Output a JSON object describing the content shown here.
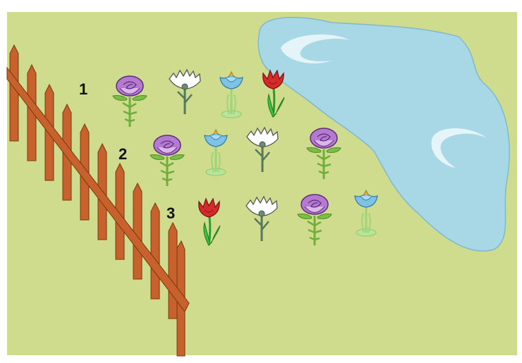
{
  "scene": {
    "ground_color": "#cfdc8e",
    "pond_color": "#a8d8e6",
    "pond_outline": "#7fb9cc",
    "fence_color": "#c8622c",
    "fence_outline": "#7a3612"
  },
  "rows": [
    {
      "label": "1",
      "flowers": [
        "purple-rose",
        "white-carnation",
        "blue-crocus",
        "red-tulip"
      ]
    },
    {
      "label": "2",
      "flowers": [
        "purple-rose",
        "blue-crocus",
        "white-carnation",
        "purple-rose"
      ]
    },
    {
      "label": "3",
      "flowers": [
        "red-tulip",
        "white-carnation",
        "purple-rose",
        "blue-crocus"
      ]
    }
  ]
}
